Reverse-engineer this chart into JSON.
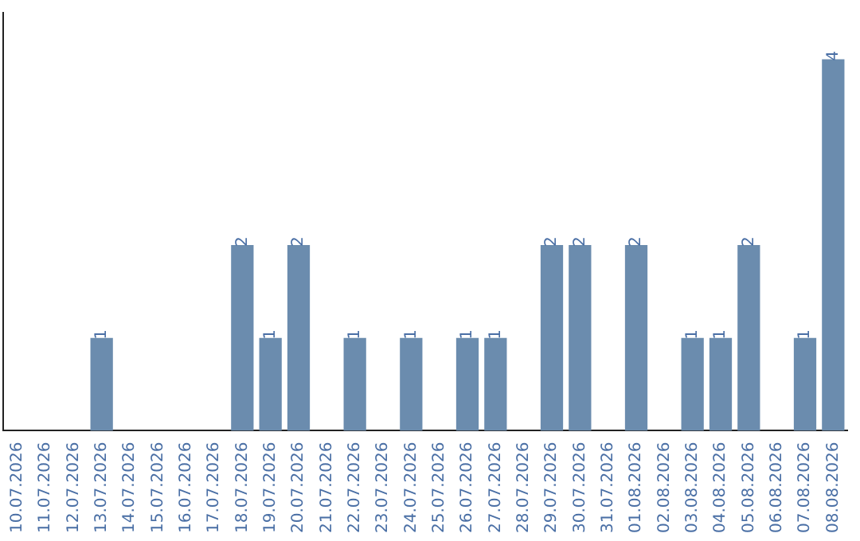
{
  "chart_data": {
    "type": "bar",
    "categories": [
      "10.07.2026",
      "11.07.2026",
      "12.07.2026",
      "13.07.2026",
      "14.07.2026",
      "15.07.2026",
      "16.07.2026",
      "17.07.2026",
      "18.07.2026",
      "19.07.2026",
      "20.07.2026",
      "21.07.2026",
      "22.07.2026",
      "23.07.2026",
      "24.07.2026",
      "25.07.2026",
      "26.07.2026",
      "27.07.2026",
      "28.07.2026",
      "29.07.2026",
      "30.07.2026",
      "31.07.2026",
      "01.08.2026",
      "02.08.2026",
      "03.08.2026",
      "04.08.2026",
      "05.08.2026",
      "06.08.2026",
      "07.08.2026",
      "08.08.2026"
    ],
    "values": [
      0,
      0,
      0,
      1,
      0,
      0,
      0,
      0,
      2,
      1,
      2,
      0,
      1,
      0,
      1,
      0,
      1,
      1,
      0,
      2,
      2,
      0,
      2,
      0,
      1,
      1,
      2,
      0,
      1,
      4
    ],
    "value_labels": [
      null,
      null,
      null,
      "1",
      null,
      null,
      null,
      null,
      "2",
      "1",
      "2",
      null,
      "1",
      null,
      "1",
      null,
      "1",
      "1",
      null,
      "2",
      "2",
      null,
      "2",
      null,
      "1",
      "1",
      "2",
      null,
      "1",
      "4"
    ],
    "color": "#6b8cae",
    "tick_labels": "x",
    "grid": false,
    "legend": false
  }
}
